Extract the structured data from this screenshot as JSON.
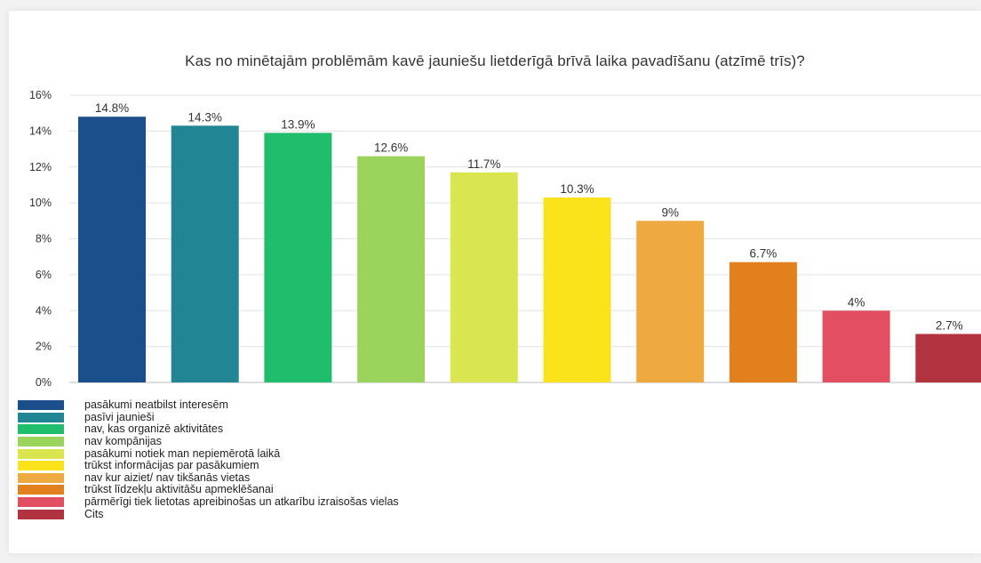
{
  "chart_data": {
    "type": "bar",
    "title": "Kas no minētajām problēmām kavē jauniešu lietderīgā brīvā laika pavadīšanu (atzīmē trīs)?",
    "xlabel": "",
    "ylabel": "",
    "ylim": [
      0,
      16
    ],
    "yticks": [
      "0%",
      "2%",
      "4%",
      "6%",
      "8%",
      "10%",
      "12%",
      "14%",
      "16%"
    ],
    "grid": true,
    "legend_position": "bottom-left",
    "categories": [
      "pasākumi neatbilst interesēm",
      "pasīvi jaunieši",
      "nav, kas organizē aktivitātes",
      "nav kompānijas",
      "pasākumi notiek man nepiemērotā laikā",
      "trūkst informācijas par pasākumiem",
      "nav kur aiziet/ nav tikšanās vietas",
      "trūkst līdzekļu aktivitāšu apmeklēšanai",
      "pārmērīgi tiek lietotas apreibinošas un atkarību izraisošas vielas",
      "Cits"
    ],
    "values": [
      14.8,
      14.3,
      13.9,
      12.6,
      11.7,
      10.3,
      9,
      6.7,
      4,
      2.7
    ],
    "value_labels": [
      "14.8%",
      "14.3%",
      "13.9%",
      "12.6%",
      "11.7%",
      "10.3%",
      "9%",
      "6.7%",
      "4%",
      "2.7%"
    ],
    "colors": [
      "#1a4f8b",
      "#228593",
      "#1fbd6c",
      "#9ad45c",
      "#d9e650",
      "#fbe31b",
      "#eeaa40",
      "#e1801d",
      "#e34f62",
      "#b23340"
    ]
  }
}
